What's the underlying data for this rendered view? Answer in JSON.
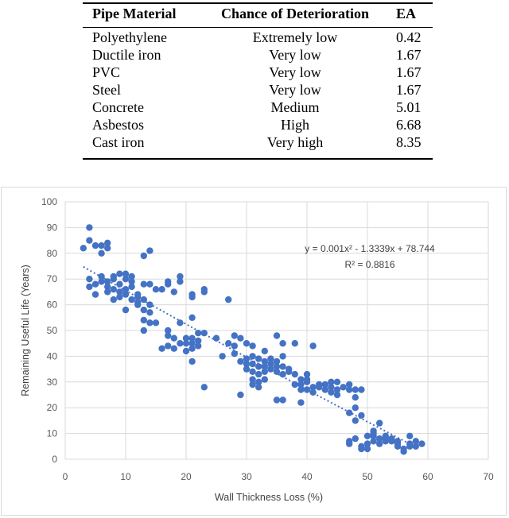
{
  "table": {
    "headers": [
      "Pipe Material",
      "Chance of Deterioration",
      "EA"
    ],
    "rows": [
      [
        "Polyethylene",
        "Extremely low",
        "0.42"
      ],
      [
        "Ductile iron",
        "Very low",
        "1.67"
      ],
      [
        "PVC",
        "Very low",
        "1.67"
      ],
      [
        "Steel",
        "Very low",
        "1.67"
      ],
      [
        "Concrete",
        "Medium",
        "5.01"
      ],
      [
        "Asbestos",
        "High",
        "6.68"
      ],
      [
        "Cast iron",
        "Very high",
        "8.35"
      ]
    ]
  },
  "chart_data": {
    "type": "scatter",
    "xlabel": "Wall Thickness Loss (%)",
    "ylabel": "Remaining Useful Life (Years)",
    "xlim": [
      0,
      70
    ],
    "ylim": [
      0,
      100
    ],
    "xticks": [
      "0",
      "10",
      "20",
      "30",
      "40",
      "50",
      "60",
      "70"
    ],
    "yticks": [
      "0",
      "10",
      "20",
      "30",
      "40",
      "50",
      "60",
      "70",
      "80",
      "90",
      "100"
    ],
    "grid": true,
    "marker_color": "#4472c4",
    "trendline": {
      "equation": "y = 0.001x² - 1.3339x + 78.744",
      "r_squared": "R² = 0.8816",
      "coefficients": [
        0.001,
        -1.3339,
        78.744
      ],
      "x_range": [
        3,
        57
      ],
      "style": "dotted"
    },
    "points": [
      [
        3,
        82
      ],
      [
        4,
        90
      ],
      [
        4,
        85
      ],
      [
        5,
        83
      ],
      [
        6,
        80
      ],
      [
        6,
        83
      ],
      [
        7,
        84
      ],
      [
        7,
        82
      ],
      [
        4,
        70
      ],
      [
        4,
        67
      ],
      [
        5,
        68
      ],
      [
        5,
        64
      ],
      [
        6,
        71
      ],
      [
        6,
        69
      ],
      [
        7,
        67
      ],
      [
        7,
        65
      ],
      [
        8,
        66
      ],
      [
        8,
        70
      ],
      [
        8,
        62
      ],
      [
        9,
        65
      ],
      [
        9,
        63
      ],
      [
        9,
        68
      ],
      [
        10,
        70
      ],
      [
        10,
        72
      ],
      [
        10,
        66
      ],
      [
        10,
        64
      ],
      [
        11,
        69
      ],
      [
        11,
        67
      ],
      [
        11,
        62
      ],
      [
        12,
        63
      ],
      [
        12,
        61
      ],
      [
        12,
        60
      ],
      [
        13,
        62
      ],
      [
        13,
        58
      ],
      [
        14,
        60
      ],
      [
        14,
        57
      ],
      [
        9,
        72
      ],
      [
        10,
        58
      ],
      [
        8,
        71
      ],
      [
        7,
        69
      ],
      [
        11,
        71
      ],
      [
        12,
        64
      ],
      [
        13,
        79
      ],
      [
        14,
        81
      ],
      [
        13,
        68
      ],
      [
        14,
        68
      ],
      [
        15,
        66
      ],
      [
        16,
        66
      ],
      [
        17,
        68
      ],
      [
        17,
        69
      ],
      [
        18,
        65
      ],
      [
        19,
        71
      ],
      [
        19,
        69
      ],
      [
        13,
        54
      ],
      [
        14,
        53
      ],
      [
        15,
        53
      ],
      [
        13,
        50
      ],
      [
        16,
        43
      ],
      [
        17,
        50
      ],
      [
        17,
        48
      ],
      [
        17,
        44
      ],
      [
        18,
        47
      ],
      [
        18,
        43
      ],
      [
        19,
        45
      ],
      [
        19,
        53
      ],
      [
        20,
        42
      ],
      [
        20,
        45
      ],
      [
        20,
        47
      ],
      [
        21,
        47
      ],
      [
        21,
        45
      ],
      [
        21,
        43
      ],
      [
        22,
        49
      ],
      [
        22,
        46
      ],
      [
        22,
        44
      ],
      [
        21,
        38
      ],
      [
        21,
        55
      ],
      [
        21,
        64
      ],
      [
        21,
        63
      ],
      [
        23,
        49
      ],
      [
        23,
        28
      ],
      [
        23,
        66
      ],
      [
        23,
        65
      ],
      [
        25,
        47
      ],
      [
        27,
        45
      ],
      [
        27,
        62
      ],
      [
        26,
        40
      ],
      [
        28,
        48
      ],
      [
        28,
        44
      ],
      [
        28,
        41
      ],
      [
        29,
        47
      ],
      [
        29,
        38
      ],
      [
        29,
        25
      ],
      [
        30,
        45
      ],
      [
        30,
        39
      ],
      [
        30,
        37
      ],
      [
        30,
        35
      ],
      [
        31,
        44
      ],
      [
        31,
        40
      ],
      [
        31,
        37
      ],
      [
        31,
        34
      ],
      [
        31,
        31
      ],
      [
        31,
        29
      ],
      [
        32,
        39
      ],
      [
        32,
        36
      ],
      [
        32,
        33
      ],
      [
        32,
        30
      ],
      [
        32,
        28
      ],
      [
        33,
        42
      ],
      [
        33,
        38
      ],
      [
        33,
        36
      ],
      [
        33,
        34
      ],
      [
        33,
        31
      ],
      [
        34,
        39
      ],
      [
        34,
        37
      ],
      [
        34,
        35
      ],
      [
        35,
        48
      ],
      [
        35,
        38
      ],
      [
        35,
        36
      ],
      [
        35,
        34
      ],
      [
        36,
        45
      ],
      [
        36,
        40
      ],
      [
        36,
        36
      ],
      [
        36,
        33
      ],
      [
        37,
        35
      ],
      [
        37,
        34
      ],
      [
        35,
        23
      ],
      [
        38,
        45
      ],
      [
        38,
        33
      ],
      [
        38,
        29
      ],
      [
        39,
        31
      ],
      [
        39,
        29
      ],
      [
        39,
        27
      ],
      [
        40,
        33
      ],
      [
        40,
        31
      ],
      [
        40,
        30
      ],
      [
        40,
        27
      ],
      [
        41,
        44
      ],
      [
        41,
        28
      ],
      [
        41,
        26
      ],
      [
        42,
        29
      ],
      [
        42,
        28
      ],
      [
        43,
        29
      ],
      [
        43,
        27
      ],
      [
        44,
        30
      ],
      [
        44,
        28
      ],
      [
        44,
        26
      ],
      [
        45,
        30
      ],
      [
        45,
        27
      ],
      [
        45,
        25
      ],
      [
        46,
        28
      ],
      [
        47,
        27
      ],
      [
        47,
        29
      ],
      [
        48,
        27
      ],
      [
        48,
        24
      ],
      [
        49,
        27
      ],
      [
        39,
        22
      ],
      [
        36,
        23
      ],
      [
        47,
        18
      ],
      [
        48,
        20
      ],
      [
        48,
        15
      ],
      [
        49,
        17
      ],
      [
        47,
        7
      ],
      [
        47,
        6
      ],
      [
        48,
        8
      ],
      [
        49,
        5
      ],
      [
        50,
        9
      ],
      [
        50,
        6
      ],
      [
        51,
        11
      ],
      [
        51,
        9
      ],
      [
        51,
        7
      ],
      [
        52,
        14
      ],
      [
        52,
        8
      ],
      [
        52,
        6
      ],
      [
        53,
        8
      ],
      [
        53,
        7
      ],
      [
        54,
        8
      ],
      [
        54,
        7
      ],
      [
        55,
        6
      ],
      [
        55,
        5
      ],
      [
        56,
        4
      ],
      [
        56,
        3
      ],
      [
        57,
        9
      ],
      [
        57,
        6
      ],
      [
        58,
        7
      ],
      [
        58,
        5
      ],
      [
        59,
        6
      ],
      [
        50,
        4
      ],
      [
        51,
        10
      ],
      [
        53,
        9
      ],
      [
        49,
        4
      ],
      [
        55,
        7
      ],
      [
        57,
        5
      ]
    ]
  }
}
